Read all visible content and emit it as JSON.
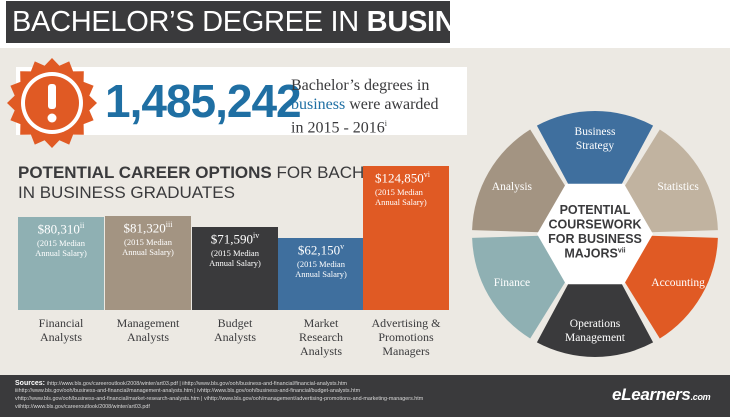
{
  "header": {
    "title_regular": "BACHELOR’S DEGREE IN ",
    "title_bold": "BUSINESS"
  },
  "stat": {
    "number": "1,485,242",
    "line1": "Bachelor’s degrees in",
    "line2_blue": "business",
    "line2_rest": " were awarded",
    "line3": "in 2015 - 2016",
    "line3_sup": "i"
  },
  "career": {
    "heading_bold": "POTENTIAL CAREER OPTIONS",
    "heading_rest": " FOR BACHELOR’S",
    "heading_line2": "IN BUSINESS GRADUATES"
  },
  "chart_data": {
    "type": "bar",
    "categories": [
      "Financial Analysts",
      "Management Analysts",
      "Budget Analysts",
      "Market Research Analysts",
      "Advertising & Promotions Managers"
    ],
    "values": [
      80310,
      81320,
      71590,
      62150,
      124850
    ],
    "value_labels": [
      "$80,310",
      "$81,320",
      "$71,590",
      "$62,150",
      "$124,850"
    ],
    "superscripts": [
      "ii",
      "iii",
      "iv",
      "v",
      "vi"
    ],
    "note_line1": "(2015 Median",
    "note_line2": "Annual Salary)",
    "label_lines": [
      [
        "Financial",
        "Analysts"
      ],
      [
        "Management",
        "Analysts"
      ],
      [
        "Budget",
        "Analysts"
      ],
      [
        "Market",
        "Research",
        "Analysts"
      ],
      [
        "Advertising &",
        "Promotions",
        "Managers"
      ]
    ],
    "colors": [
      "#8fb0b3",
      "#a39482",
      "#3a3a3c",
      "#3f6f9e",
      "#e05a24"
    ]
  },
  "wheel": {
    "center_lines": [
      "POTENTIAL",
      "COURSEWORK",
      "FOR BUSINESS",
      "MAJORS"
    ],
    "center_sup": "vii",
    "segments": [
      {
        "lines": [
          "Business",
          "Strategy"
        ],
        "color": "#3f6f9e"
      },
      {
        "lines": [
          "Statistics"
        ],
        "color": "#c1b3a0"
      },
      {
        "lines": [
          "Accounting"
        ],
        "color": "#e05a24"
      },
      {
        "lines": [
          "Operations",
          "Management"
        ],
        "color": "#3a3a3c"
      },
      {
        "lines": [
          "Finance"
        ],
        "color": "#8fb0b3"
      },
      {
        "lines": [
          "Analysis"
        ],
        "color": "#a39482"
      }
    ]
  },
  "sources": {
    "label": "Sources:",
    "lines": [
      "ihttp://www.bls.gov/careeroutlook/2008/winter/art03.pdf | iihttp://www.bls.gov/ooh/business-and-financial/financial-analysts.htm",
      "iiihttp://www.bls.gov/ooh/business-and-financial/management-analysts.htm | ivhttp://www.bls.gov/ooh/business-and-financial/budget-analysts.htm",
      "vhttp://www.bls.gov/ooh/business-and-financial/market-research-analysts.htm | vihttp://www.bls.gov/ooh/management/advertising-promotions-and-marketing-managers.htm",
      "viihttp://www.bls.gov/careeroutlook/2008/winter/art03.pdf"
    ]
  },
  "logo": {
    "main": "eLearners",
    "suffix": ".com"
  },
  "colors": {
    "dark": "#3a3a3c",
    "blue": "#1f6fa3",
    "orange": "#e05a24"
  }
}
